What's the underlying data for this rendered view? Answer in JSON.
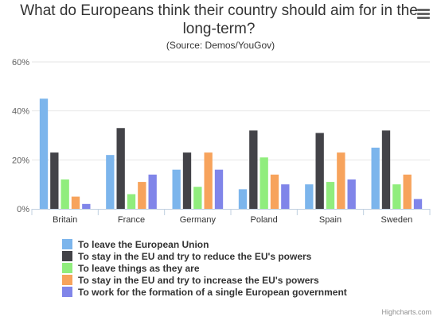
{
  "chart_data": {
    "type": "bar",
    "title": "What do Europeans think their country should aim for in the long-term?",
    "subtitle": "(Source: Demos/YouGov)",
    "categories": [
      "Britain",
      "France",
      "Germany",
      "Poland",
      "Spain",
      "Sweden"
    ],
    "ylim": [
      0,
      60
    ],
    "yticks": [
      0,
      20,
      40,
      60
    ],
    "ytick_labels": [
      "0%",
      "20%",
      "40%",
      "60%"
    ],
    "grid": true,
    "legend_position": "bottom",
    "series": [
      {
        "name": "To leave the European Union",
        "color": "#7cb5ec",
        "values": [
          45,
          22,
          16,
          8,
          10,
          25
        ]
      },
      {
        "name": "To stay in the EU and try to reduce the EU's powers",
        "color": "#434348",
        "values": [
          23,
          33,
          23,
          32,
          31,
          32
        ]
      },
      {
        "name": "To leave things as they are",
        "color": "#90ed7d",
        "values": [
          12,
          6,
          9,
          21,
          11,
          10
        ]
      },
      {
        "name": "To stay in the EU and try to increase the EU's powers",
        "color": "#f7a35c",
        "values": [
          5,
          11,
          23,
          14,
          23,
          14
        ]
      },
      {
        "name": "To work for the formation of a single European government",
        "color": "#8085e9",
        "values": [
          2,
          14,
          16,
          10,
          12,
          4
        ]
      }
    ]
  },
  "credits": "Highcharts.com",
  "menu": {
    "icon": "hamburger-menu-icon"
  }
}
